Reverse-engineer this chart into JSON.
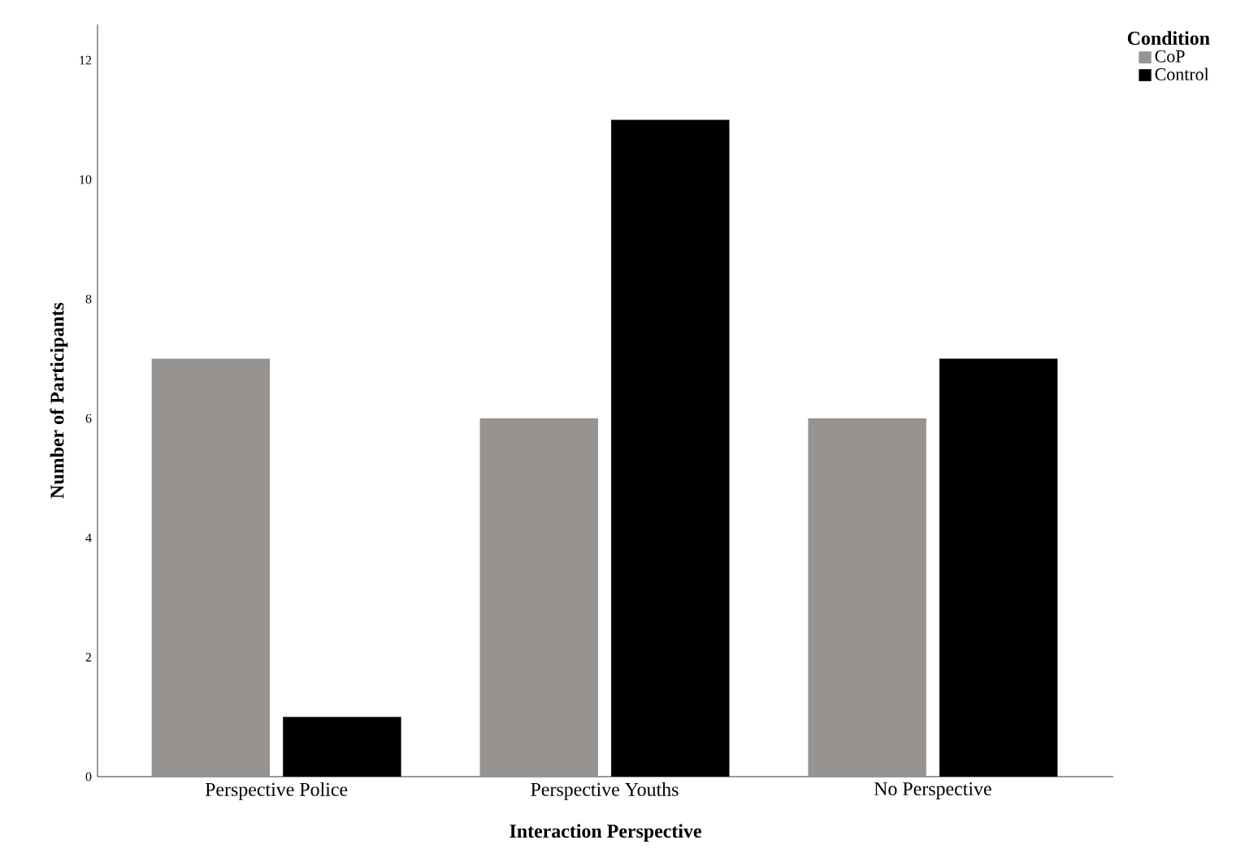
{
  "chart_data": {
    "type": "bar",
    "xlabel": "Interaction Perspective",
    "ylabel": "Number of Participants",
    "legend_title": "Condition",
    "legend": "top right",
    "categories": [
      "Perspective Police",
      "Perspective Youths",
      "No Perspective"
    ],
    "series": [
      {
        "name": "CoP",
        "color": "#969391",
        "values": [
          7,
          6,
          6
        ]
      },
      {
        "name": "Control",
        "color": "#000000",
        "values": [
          1,
          11,
          7
        ]
      }
    ],
    "ylim": [
      0,
      12.6
    ],
    "yticks": [
      0,
      2,
      4,
      6,
      8,
      10,
      12
    ]
  }
}
